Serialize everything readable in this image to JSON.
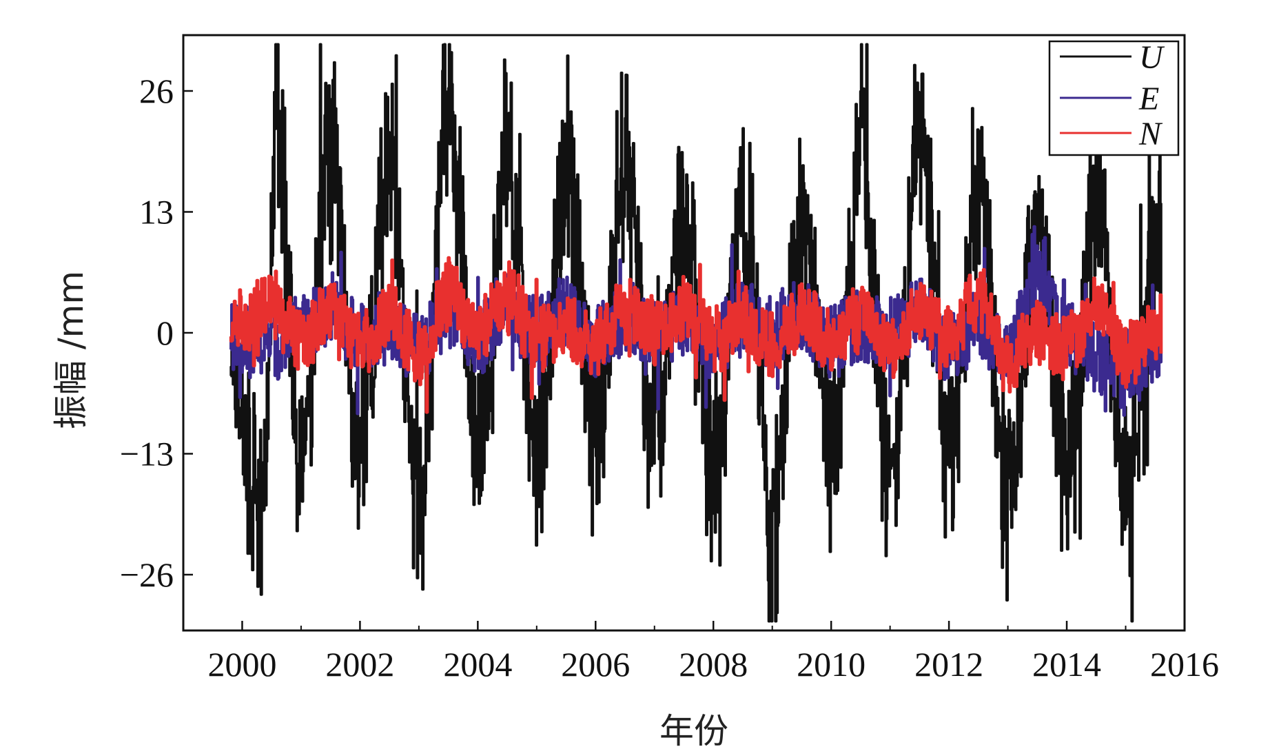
{
  "chart_data": {
    "type": "line",
    "title": "",
    "xlabel": "年份",
    "ylabel": "振幅 /mm",
    "xlim": [
      1999.0,
      2016.0
    ],
    "ylim": [
      -32,
      32
    ],
    "xticks": [
      2000,
      2002,
      2004,
      2006,
      2008,
      2010,
      2012,
      2014,
      2016
    ],
    "xtick_labels": [
      "2000",
      "2002",
      "2004",
      "2006",
      "2008",
      "2010",
      "2012",
      "2014",
      "2016"
    ],
    "yticks": [
      26,
      13,
      0,
      -13,
      -26
    ],
    "ytick_labels": [
      "26",
      "13",
      "0",
      "−13",
      "−26"
    ],
    "grid": false,
    "legend_position": "top-right",
    "data_range": [
      1999.8,
      2015.6
    ],
    "series": [
      {
        "name": "U",
        "color": "#111111",
        "x": [
          1999.8,
          2000.3,
          2000.6,
          2001.0,
          2001.5,
          2002.0,
          2002.5,
          2003.0,
          2003.5,
          2004.0,
          2004.5,
          2005.0,
          2005.5,
          2006.0,
          2006.5,
          2007.0,
          2007.5,
          2008.0,
          2008.5,
          2009.0,
          2009.5,
          2010.0,
          2010.5,
          2011.0,
          2011.5,
          2012.0,
          2012.5,
          2013.0,
          2013.5,
          2014.0,
          2014.5,
          2015.0,
          2015.6
        ],
        "y": [
          0,
          -26,
          29,
          -20,
          27,
          -16,
          24,
          -24,
          30,
          -15,
          23,
          -18,
          24,
          -15,
          22,
          -17,
          19,
          -20,
          20,
          -26,
          18,
          -16,
          23,
          -20,
          29,
          -20,
          21,
          -24,
          17,
          -21,
          19,
          -20,
          15
        ],
        "noise_amplitude": 9
      },
      {
        "name": "E",
        "color": "#3b2a8f",
        "x": [
          1999.8,
          2000.5,
          2001.0,
          2001.5,
          2002.0,
          2002.5,
          2003.0,
          2003.5,
          2004.0,
          2004.5,
          2005.0,
          2005.5,
          2006.0,
          2006.5,
          2007.0,
          2007.5,
          2008.0,
          2008.5,
          2009.0,
          2009.5,
          2010.0,
          2010.5,
          2011.0,
          2011.5,
          2012.0,
          2012.5,
          2013.0,
          2013.5,
          2014.0,
          2014.5,
          2015.0,
          2015.6
        ],
        "y": [
          0,
          -2,
          1,
          3,
          -1,
          1,
          -2,
          3,
          -1,
          4,
          0,
          3,
          -1,
          2,
          0,
          2,
          -1,
          2,
          0,
          2,
          -1,
          1,
          0,
          3,
          -2,
          1,
          -3,
          9,
          0,
          -3,
          -5,
          -3
        ],
        "noise_amplitude": 4
      },
      {
        "name": "N",
        "color": "#e8302f",
        "x": [
          1999.8,
          2000.5,
          2001.0,
          2001.5,
          2002.0,
          2002.5,
          2003.0,
          2003.5,
          2004.0,
          2004.5,
          2005.0,
          2005.5,
          2006.0,
          2006.5,
          2007.0,
          2007.5,
          2008.0,
          2008.5,
          2009.0,
          2009.5,
          2010.0,
          2010.5,
          2011.0,
          2011.5,
          2012.0,
          2012.5,
          2013.0,
          2013.5,
          2014.0,
          2014.5,
          2015.0,
          2015.6
        ],
        "y": [
          1,
          4,
          -1,
          3,
          -2,
          2,
          -3,
          5,
          1,
          5,
          -1,
          1,
          -2,
          3,
          0,
          3,
          -1,
          2,
          -2,
          3,
          -1,
          2,
          -2,
          3,
          -1,
          5,
          -4,
          0,
          -2,
          4,
          -3,
          1
        ],
        "noise_amplitude": 3.5
      }
    ]
  }
}
